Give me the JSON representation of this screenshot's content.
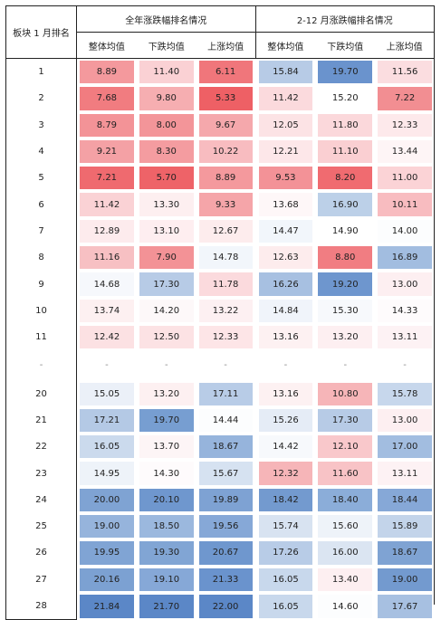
{
  "header": {
    "corner": "板块 1 月排名",
    "group1": "全年涨跌幅排名情况",
    "group2": "2-12 月涨跌幅排名情况",
    "sub": [
      "整体均值",
      "下跌均值",
      "上涨均值",
      "整体均值",
      "下跌均值",
      "上涨均值"
    ]
  },
  "rows": [
    {
      "rank": "1",
      "v": [
        "8.89",
        "11.40",
        "6.11",
        "15.84",
        "19.70",
        "11.56"
      ],
      "c": [
        "#f4999d",
        "#fad1d4",
        "#f0767b",
        "#b7cbe6",
        "#6a93cd",
        "#fbdde0"
      ]
    },
    {
      "rank": "2",
      "v": [
        "7.68",
        "9.80",
        "5.33",
        "11.42",
        "15.20",
        "7.22"
      ],
      "c": [
        "#f17c80",
        "#f6aeb1",
        "#ee6065",
        "#fbdadd",
        "#ffffff",
        "#f28e92"
      ]
    },
    {
      "rank": "3",
      "v": [
        "8.79",
        "8.00",
        "9.67",
        "12.05",
        "11.80",
        "12.33"
      ],
      "c": [
        "#f39397",
        "#f39599",
        "#f5a8ac",
        "#fce3e5",
        "#fbd8db",
        "#fde9eb"
      ]
    },
    {
      "rank": "4",
      "v": [
        "9.21",
        "8.30",
        "10.22",
        "12.21",
        "11.10",
        "13.44"
      ],
      "c": [
        "#f4a1a5",
        "#f49ca0",
        "#f8bcc0",
        "#fde7e9",
        "#facfd2",
        "#fef5f6"
      ]
    },
    {
      "rank": "5",
      "v": [
        "7.21",
        "5.70",
        "8.89",
        "9.53",
        "8.20",
        "11.00"
      ],
      "c": [
        "#ef6a6f",
        "#ee6368",
        "#f4999d",
        "#f39297",
        "#f06b70",
        "#fbd3d6"
      ]
    },
    {
      "rank": "6",
      "v": [
        "11.42",
        "13.30",
        "9.33",
        "13.68",
        "16.90",
        "10.11"
      ],
      "c": [
        "#fad2d5",
        "#fdeff0",
        "#f5a5a9",
        "#fef7f8",
        "#bcd0e8",
        "#f8bcc0"
      ]
    },
    {
      "rank": "7",
      "v": [
        "12.89",
        "13.10",
        "12.67",
        "14.47",
        "14.90",
        "14.00"
      ],
      "c": [
        "#fdebed",
        "#feeef0",
        "#fdeced",
        "#f2f6fb",
        "#ffffff",
        "#fcfdfe"
      ]
    },
    {
      "rank": "8",
      "v": [
        "11.16",
        "7.90",
        "14.78",
        "12.63",
        "8.80",
        "16.89"
      ],
      "c": [
        "#f7c0c3",
        "#f39296",
        "#f2f6fb",
        "#fdeced",
        "#f17d82",
        "#a2bde0"
      ]
    },
    {
      "rank": "9",
      "v": [
        "14.68",
        "17.30",
        "11.78",
        "16.26",
        "19.20",
        "13.00"
      ],
      "c": [
        "#f6f8fc",
        "#b7cbe6",
        "#fbdadd",
        "#a7c0e1",
        "#6e96ce",
        "#fdeff1"
      ]
    },
    {
      "rank": "10",
      "v": [
        "13.74",
        "14.20",
        "13.22",
        "14.84",
        "15.30",
        "14.33"
      ],
      "c": [
        "#fdf0f1",
        "#fdf8f9",
        "#fdf0f2",
        "#f0f4fa",
        "#f7f9fc",
        "#fefbfc"
      ]
    },
    {
      "rank": "11",
      "v": [
        "12.42",
        "12.50",
        "12.33",
        "13.16",
        "13.20",
        "13.11"
      ],
      "c": [
        "#fce1e3",
        "#fce2e4",
        "#fde5e7",
        "#fdf1f2",
        "#fdeff1",
        "#fdf2f4"
      ]
    },
    {
      "rank": "-",
      "v": [
        "-",
        "-",
        "-",
        "-",
        "-",
        "-"
      ],
      "c": [
        "#ffffff",
        "#ffffff",
        "#ffffff",
        "#ffffff",
        "#ffffff",
        "#ffffff"
      ]
    },
    {
      "rank": "20",
      "v": [
        "15.05",
        "13.20",
        "17.11",
        "13.16",
        "10.80",
        "15.78"
      ],
      "c": [
        "#ebf0f8",
        "#fdf0f1",
        "#b8cce7",
        "#fdf1f2",
        "#f6b5b8",
        "#c7d7ec"
      ]
    },
    {
      "rank": "21",
      "v": [
        "17.21",
        "19.70",
        "14.44",
        "15.26",
        "17.30",
        "13.00"
      ],
      "c": [
        "#b4c9e5",
        "#779ed1",
        "#fcfdfe",
        "#e5ecf6",
        "#b7cbe6",
        "#fdeff1"
      ]
    },
    {
      "rank": "22",
      "v": [
        "16.05",
        "13.70",
        "18.67",
        "14.42",
        "12.10",
        "17.00"
      ],
      "c": [
        "#cbdaed",
        "#fdf5f6",
        "#96b4dc",
        "#f7f9fc",
        "#f9c8cb",
        "#a2bde0"
      ]
    },
    {
      "rank": "23",
      "v": [
        "14.95",
        "14.30",
        "15.67",
        "12.32",
        "11.60",
        "13.11"
      ],
      "c": [
        "#eef3f9",
        "#fefbfc",
        "#d6e2f1",
        "#f6b5b8",
        "#f8c3c6",
        "#fdf2f4"
      ]
    },
    {
      "rank": "24",
      "v": [
        "20.00",
        "20.10",
        "19.89",
        "18.42",
        "18.40",
        "18.44"
      ],
      "c": [
        "#7fa3d3",
        "#6f97ce",
        "#7ea2d3",
        "#739acf",
        "#8badd9",
        "#86a8d7"
      ]
    },
    {
      "rank": "25",
      "v": [
        "19.00",
        "18.50",
        "19.56",
        "15.74",
        "15.60",
        "15.89"
      ],
      "c": [
        "#96b4dc",
        "#9bb8de",
        "#86a8d7",
        "#d8e3f1",
        "#eef3f9",
        "#c3d4ea"
      ]
    },
    {
      "rank": "26",
      "v": [
        "19.95",
        "19.30",
        "20.67",
        "17.26",
        "16.00",
        "18.67"
      ],
      "c": [
        "#80a4d4",
        "#81a5d4",
        "#6f97ce",
        "#b8cce7",
        "#dbe5f2",
        "#7fa3d3"
      ]
    },
    {
      "rank": "27",
      "v": [
        "20.16",
        "19.10",
        "21.33",
        "16.05",
        "13.40",
        "19.00"
      ],
      "c": [
        "#7ca1d2",
        "#86a8d7",
        "#6a93cd",
        "#c8d8ec",
        "#fdeff1",
        "#739acf"
      ]
    },
    {
      "rank": "28",
      "v": [
        "21.84",
        "21.70",
        "22.00",
        "16.05",
        "14.60",
        "17.67"
      ],
      "c": [
        "#5b87c7",
        "#5b87c7",
        "#5b87c7",
        "#c8d8ec",
        "#fcfdfe",
        "#a7c0e1"
      ]
    }
  ]
}
